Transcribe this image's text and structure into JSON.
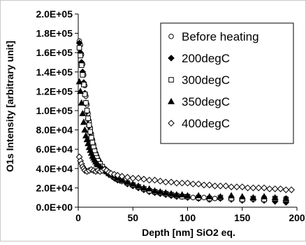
{
  "chart_data": {
    "type": "scatter",
    "xlabel": "Depth [nm] SiO2 eq.",
    "ylabel": "O1s Intensity [arbitrary unit]",
    "xlim": [
      0,
      200
    ],
    "ylim": [
      0,
      200000
    ],
    "x_ticks": [
      "0",
      "50",
      "100",
      "150",
      "200"
    ],
    "x_tick_values": [
      0,
      50,
      100,
      150,
      200
    ],
    "y_ticks": [
      "0.0E+00",
      "2.0E+04",
      "4.0E+04",
      "6.0E+04",
      "8.0E+04",
      "1.0E+05",
      "1.2E+05",
      "1.4E+05",
      "1.6E+05",
      "1.8E+05",
      "2.0E+05"
    ],
    "y_tick_values": [
      0,
      20000,
      40000,
      60000,
      80000,
      100000,
      120000,
      140000,
      160000,
      180000,
      200000
    ],
    "grid": false,
    "legend_position": "top-right",
    "series": [
      {
        "name": "Before heating",
        "marker": "circle-open",
        "points": [
          [
            1,
            172000
          ],
          [
            2,
            168000
          ],
          [
            3,
            158000
          ],
          [
            4,
            148000
          ],
          [
            5,
            137000
          ],
          [
            6,
            126000
          ],
          [
            7,
            115000
          ],
          [
            8,
            106000
          ],
          [
            9,
            97000
          ],
          [
            10,
            89000
          ],
          [
            11,
            82000
          ],
          [
            12,
            76000
          ],
          [
            13,
            70000
          ],
          [
            14,
            65000
          ],
          [
            15,
            60000
          ],
          [
            16,
            56000
          ],
          [
            17,
            53000
          ],
          [
            18,
            50000
          ],
          [
            19,
            48000
          ],
          [
            20,
            45000
          ],
          [
            22,
            42000
          ],
          [
            24,
            40000
          ],
          [
            26,
            38000
          ],
          [
            28,
            36000
          ],
          [
            30,
            34000
          ],
          [
            33,
            32000
          ],
          [
            36,
            30000
          ],
          [
            40,
            28000
          ],
          [
            45,
            25000
          ],
          [
            50,
            23000
          ],
          [
            55,
            21000
          ],
          [
            60,
            19000
          ],
          [
            65,
            17000
          ],
          [
            70,
            16000
          ],
          [
            75,
            15000
          ],
          [
            80,
            14000
          ],
          [
            85,
            13000
          ],
          [
            90,
            12000
          ],
          [
            95,
            11000
          ],
          [
            100,
            11000
          ],
          [
            105,
            10000
          ],
          [
            110,
            9000
          ],
          [
            115,
            10000
          ],
          [
            120,
            8000
          ],
          [
            125,
            9000
          ],
          [
            130,
            10000
          ],
          [
            140,
            9000
          ],
          [
            150,
            8000
          ],
          [
            160,
            9000
          ],
          [
            170,
            10000
          ],
          [
            180,
            8000
          ],
          [
            190,
            9000
          ]
        ]
      },
      {
        "name": "200degC",
        "marker": "diamond-filled",
        "points": [
          [
            1,
            170000
          ],
          [
            2,
            160000
          ],
          [
            3,
            150000
          ],
          [
            4,
            140000
          ],
          [
            5,
            129000
          ],
          [
            6,
            118000
          ],
          [
            7,
            108000
          ],
          [
            8,
            99000
          ],
          [
            9,
            91000
          ],
          [
            10,
            84000
          ],
          [
            11,
            77000
          ],
          [
            12,
            71000
          ],
          [
            13,
            66000
          ],
          [
            14,
            61000
          ],
          [
            15,
            57000
          ],
          [
            16,
            53000
          ],
          [
            17,
            50000
          ],
          [
            18,
            48000
          ],
          [
            20,
            44000
          ],
          [
            22,
            41000
          ],
          [
            24,
            38000
          ],
          [
            26,
            36000
          ],
          [
            28,
            34000
          ],
          [
            30,
            33000
          ],
          [
            33,
            30000
          ],
          [
            36,
            28000
          ],
          [
            40,
            27000
          ],
          [
            45,
            24000
          ],
          [
            50,
            22000
          ],
          [
            55,
            20000
          ],
          [
            60,
            18000
          ],
          [
            65,
            16000
          ],
          [
            70,
            15000
          ],
          [
            75,
            14000
          ],
          [
            80,
            13000
          ],
          [
            85,
            12000
          ],
          [
            90,
            11000
          ],
          [
            95,
            11000
          ],
          [
            100,
            10000
          ],
          [
            110,
            9000
          ],
          [
            120,
            8000
          ],
          [
            130,
            9000
          ],
          [
            140,
            8000
          ],
          [
            150,
            7000
          ],
          [
            160,
            8000
          ],
          [
            170,
            7000
          ],
          [
            180,
            6000
          ],
          [
            190,
            5000
          ]
        ]
      },
      {
        "name": "300degC",
        "marker": "square-open",
        "points": [
          [
            1,
            165000
          ],
          [
            2,
            157000
          ],
          [
            3,
            147000
          ],
          [
            4,
            137000
          ],
          [
            5,
            127000
          ],
          [
            6,
            117000
          ],
          [
            7,
            108000
          ],
          [
            8,
            100000
          ],
          [
            9,
            92000
          ],
          [
            10,
            85000
          ],
          [
            11,
            78000
          ],
          [
            12,
            72000
          ],
          [
            13,
            67000
          ],
          [
            14,
            62000
          ],
          [
            15,
            58000
          ],
          [
            16,
            54000
          ],
          [
            17,
            51000
          ],
          [
            18,
            48000
          ],
          [
            20,
            45000
          ],
          [
            22,
            42000
          ],
          [
            24,
            39000
          ],
          [
            26,
            37000
          ],
          [
            28,
            35000
          ],
          [
            30,
            33000
          ],
          [
            33,
            31000
          ],
          [
            36,
            29000
          ],
          [
            40,
            27000
          ],
          [
            45,
            25000
          ],
          [
            50,
            23000
          ],
          [
            55,
            21000
          ],
          [
            60,
            19000
          ],
          [
            65,
            17000
          ],
          [
            70,
            16000
          ],
          [
            75,
            15000
          ],
          [
            80,
            14000
          ],
          [
            85,
            13000
          ],
          [
            90,
            12000
          ],
          [
            95,
            11000
          ],
          [
            100,
            11000
          ],
          [
            110,
            10000
          ],
          [
            120,
            9000
          ],
          [
            130,
            10000
          ],
          [
            140,
            9000
          ],
          [
            150,
            8000
          ],
          [
            160,
            9000
          ],
          [
            170,
            8000
          ],
          [
            180,
            9000
          ],
          [
            190,
            8000
          ]
        ]
      },
      {
        "name": "350degC",
        "marker": "triangle-filled",
        "points": [
          [
            1,
            130000
          ],
          [
            2,
            120000
          ],
          [
            3,
            108000
          ],
          [
            4,
            97000
          ],
          [
            5,
            88000
          ],
          [
            6,
            80000
          ],
          [
            7,
            74000
          ],
          [
            8,
            70000
          ],
          [
            9,
            66000
          ],
          [
            10,
            62000
          ],
          [
            11,
            59000
          ],
          [
            12,
            56000
          ],
          [
            13,
            53000
          ],
          [
            14,
            51000
          ],
          [
            15,
            49000
          ],
          [
            16,
            47000
          ],
          [
            17,
            45000
          ],
          [
            18,
            44000
          ],
          [
            20,
            42000
          ],
          [
            22,
            40000
          ],
          [
            24,
            38000
          ],
          [
            26,
            37000
          ],
          [
            28,
            35000
          ],
          [
            30,
            34000
          ],
          [
            33,
            32000
          ],
          [
            36,
            30000
          ],
          [
            40,
            28000
          ],
          [
            45,
            26000
          ],
          [
            50,
            24000
          ],
          [
            55,
            22000
          ],
          [
            60,
            20000
          ],
          [
            65,
            19000
          ],
          [
            70,
            17000
          ],
          [
            75,
            16000
          ],
          [
            80,
            15000
          ],
          [
            85,
            14000
          ],
          [
            90,
            13000
          ],
          [
            95,
            13000
          ],
          [
            100,
            12000
          ],
          [
            110,
            12000
          ],
          [
            120,
            11000
          ],
          [
            130,
            11000
          ],
          [
            140,
            12000
          ],
          [
            150,
            11000
          ],
          [
            160,
            10000
          ],
          [
            170,
            11000
          ],
          [
            180,
            10000
          ],
          [
            190,
            9000
          ]
        ]
      },
      {
        "name": "400degC",
        "marker": "diamond-open",
        "points": [
          [
            1,
            52000
          ],
          [
            2,
            48000
          ],
          [
            3,
            45000
          ],
          [
            4,
            42000
          ],
          [
            5,
            40000
          ],
          [
            6,
            38000
          ],
          [
            8,
            37000
          ],
          [
            10,
            38000
          ],
          [
            12,
            39000
          ],
          [
            14,
            38000
          ],
          [
            16,
            37000
          ],
          [
            18,
            38000
          ],
          [
            20,
            37000
          ],
          [
            22,
            38000
          ],
          [
            24,
            39000
          ],
          [
            26,
            38000
          ],
          [
            28,
            36000
          ],
          [
            30,
            35000
          ],
          [
            33,
            34000
          ],
          [
            36,
            33000
          ],
          [
            40,
            32000
          ],
          [
            45,
            31000
          ],
          [
            50,
            30000
          ],
          [
            55,
            30000
          ],
          [
            60,
            29000
          ],
          [
            65,
            28000
          ],
          [
            70,
            28000
          ],
          [
            75,
            27000
          ],
          [
            80,
            26000
          ],
          [
            85,
            26000
          ],
          [
            90,
            25000
          ],
          [
            95,
            25000
          ],
          [
            100,
            25000
          ],
          [
            105,
            24000
          ],
          [
            110,
            24000
          ],
          [
            115,
            23000
          ],
          [
            120,
            23000
          ],
          [
            125,
            22000
          ],
          [
            130,
            22000
          ],
          [
            135,
            22000
          ],
          [
            140,
            21000
          ],
          [
            145,
            21000
          ],
          [
            150,
            21000
          ],
          [
            155,
            20000
          ],
          [
            160,
            20000
          ],
          [
            165,
            20000
          ],
          [
            170,
            20000
          ],
          [
            175,
            19000
          ],
          [
            180,
            19000
          ],
          [
            185,
            19000
          ],
          [
            190,
            18000
          ],
          [
            195,
            18000
          ]
        ]
      }
    ]
  }
}
